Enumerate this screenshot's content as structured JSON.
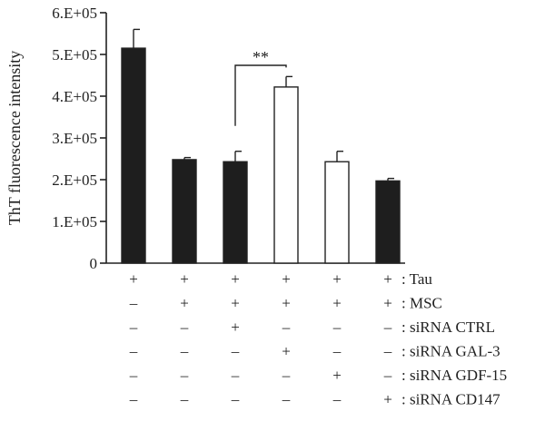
{
  "chart_data": {
    "type": "bar",
    "title": "",
    "xlabel": "",
    "ylabel": "ThT fluorescence intensity",
    "ylim": [
      0,
      600000
    ],
    "yticks": [
      0,
      100000,
      200000,
      300000,
      400000,
      500000,
      600000
    ],
    "ytick_labels": [
      "0",
      "1.E+05",
      "2.E+05",
      "3.E+05",
      "4.E+05",
      "5.E+05",
      "6.E+05"
    ],
    "grid": false,
    "legend": "none",
    "bars": [
      {
        "value": 515000,
        "error": 45000,
        "fill": "black"
      },
      {
        "value": 248000,
        "error": 5000,
        "fill": "black"
      },
      {
        "value": 243000,
        "error": 25000,
        "fill": "black"
      },
      {
        "value": 422000,
        "error": 25000,
        "fill": "white"
      },
      {
        "value": 243000,
        "error": 25000,
        "fill": "white"
      },
      {
        "value": 197000,
        "error": 6000,
        "fill": "black"
      }
    ],
    "conditions": [
      {
        "label": ": Tau",
        "marks": [
          "+",
          "+",
          "+",
          "+",
          "+",
          "+"
        ]
      },
      {
        "label": ": MSC",
        "marks": [
          "–",
          "+",
          "+",
          "+",
          "+",
          "+"
        ]
      },
      {
        "label": ": siRNA CTRL",
        "marks": [
          "–",
          "–",
          "+",
          "–",
          "–",
          "–"
        ]
      },
      {
        "label": ": siRNA GAL-3",
        "marks": [
          "–",
          "–",
          "–",
          "+",
          "–",
          "–"
        ]
      },
      {
        "label": ": siRNA GDF-15",
        "marks": [
          "–",
          "–",
          "–",
          "–",
          "+",
          "–"
        ]
      },
      {
        "label": ": siRNA CD147",
        "marks": [
          "–",
          "–",
          "–",
          "–",
          "–",
          "+"
        ]
      }
    ],
    "significance": [
      {
        "from": 2,
        "to": 3,
        "label": "**"
      }
    ]
  },
  "colors": {
    "axis": "#222222",
    "bar_dark": "#1e1e1e",
    "bar_light": "#ffffff"
  }
}
